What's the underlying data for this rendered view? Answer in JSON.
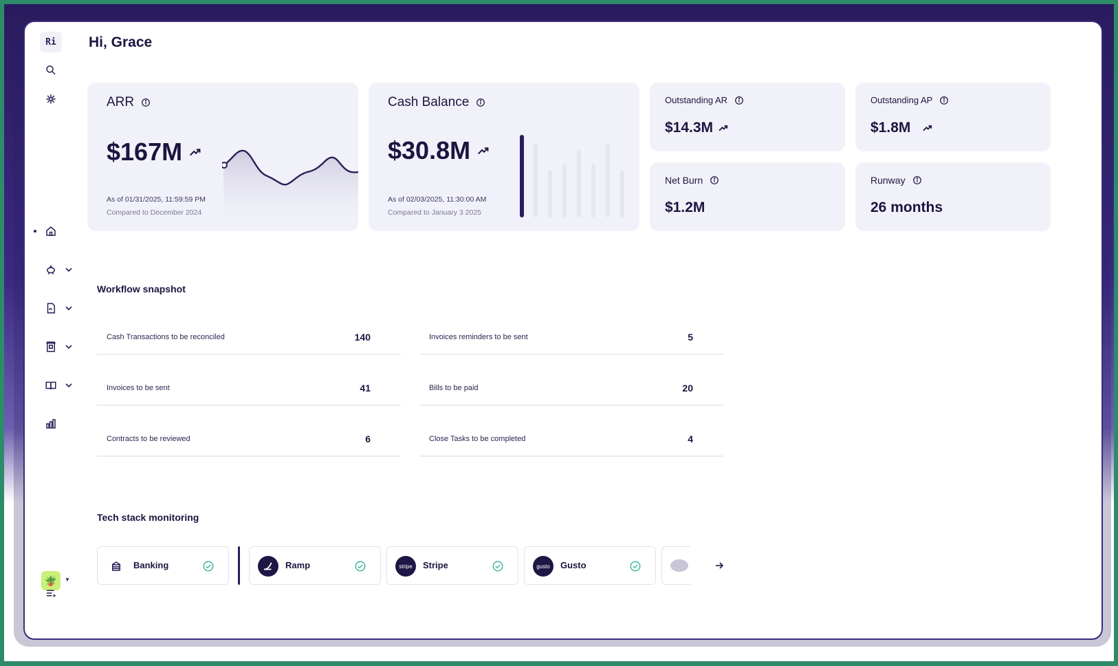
{
  "user": {
    "greeting": "Hi, Grace"
  },
  "sidebar": {
    "logo": "Ri",
    "items": [
      {
        "icon": "search-icon"
      },
      {
        "icon": "sparkle-icon"
      },
      {
        "icon": "home-icon"
      },
      {
        "icon": "piggy-bank-icon"
      },
      {
        "icon": "document-icon"
      },
      {
        "icon": "receipt-icon"
      },
      {
        "icon": "book-icon"
      },
      {
        "icon": "bar-chart-icon"
      }
    ],
    "avatar_icon": "plant-icon",
    "bottom_icon": "list-icon"
  },
  "kpis": {
    "arr": {
      "title": "ARR",
      "value": "$167M",
      "as_of": "As of 01/31/2025, 11:59:59 PM",
      "compared": "Compared to December 2024"
    },
    "cash": {
      "title": "Cash Balance",
      "value": "$30.8M",
      "as_of": "As of 02/03/2025, 11:30:00 AM",
      "compared": "Compared to January 3 2025"
    },
    "outstanding_ar": {
      "title": "Outstanding AR",
      "value": "$14.3M"
    },
    "outstanding_ap": {
      "title": "Outstanding AP",
      "value": "$1.8M"
    },
    "net_burn": {
      "title": "Net Burn",
      "value": "$1.2M"
    },
    "runway": {
      "title": "Runway",
      "value": "26 months"
    }
  },
  "workflow": {
    "title": "Workflow snapshot",
    "left": [
      {
        "label": "Cash Transactions to be reconciled",
        "count": "140"
      },
      {
        "label": "Invoices to be sent",
        "count": "41"
      },
      {
        "label": "Contracts to be reviewed",
        "count": "6"
      }
    ],
    "right": [
      {
        "label": "Invoices reminders to be sent",
        "count": "5"
      },
      {
        "label": "Bills to be paid",
        "count": "20"
      },
      {
        "label": "Close Tasks to be completed",
        "count": "4"
      }
    ]
  },
  "tech": {
    "title": "Tech stack monitoring",
    "items": [
      {
        "label": "Banking",
        "icon": "bank-icon"
      },
      {
        "label": "Ramp",
        "icon": "ramp-logo"
      },
      {
        "label": "Stripe",
        "icon": "stripe-logo",
        "badge": "stripe"
      },
      {
        "label": "Gusto",
        "icon": "gusto-logo",
        "badge": "gusto"
      }
    ]
  },
  "colors": {
    "accent": "#2a1b5e",
    "card_bg": "#f1f2f9",
    "check": "#3fb8a0"
  }
}
